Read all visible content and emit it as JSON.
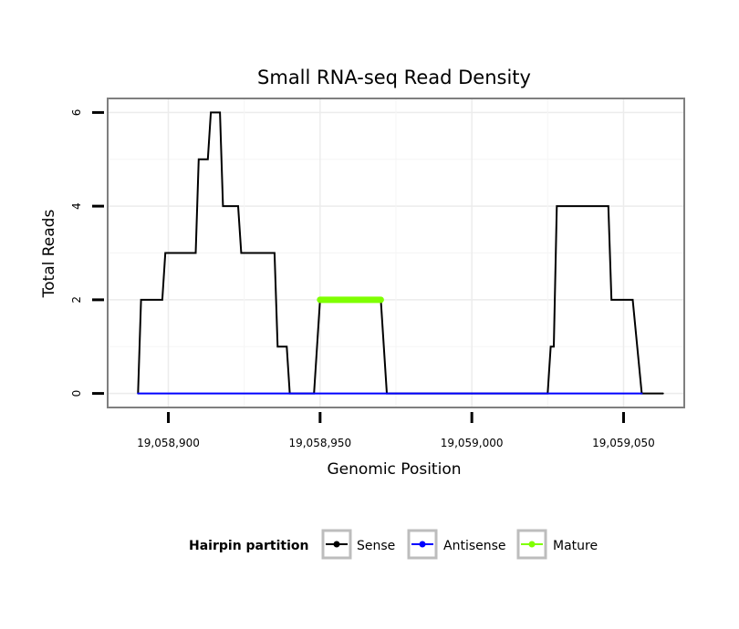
{
  "chart_data": {
    "type": "line",
    "title": "Small RNA-seq Read Density",
    "xlabel": "Genomic Position",
    "ylabel": "Total Reads",
    "xlim": [
      19058880,
      19059070
    ],
    "ylim": [
      -0.3,
      6.3
    ],
    "x_ticks": [
      19058900,
      19058950,
      19059000,
      19059050
    ],
    "x_tick_labels": [
      "19,058,900",
      "19,058,950",
      "19,059,000",
      "19,059,050"
    ],
    "y_ticks": [
      0,
      2,
      4,
      6
    ],
    "y_tick_labels": [
      "0",
      "2",
      "4",
      "6"
    ],
    "grid": true,
    "legend": {
      "title": "Hairpin partition",
      "position": "bottom",
      "entries": [
        "Sense",
        "Antisense",
        "Mature"
      ]
    },
    "series": [
      {
        "name": "Sense",
        "color": "#000000",
        "points": [
          [
            19058890,
            0
          ],
          [
            19058891,
            2
          ],
          [
            19058898,
            2
          ],
          [
            19058899,
            3
          ],
          [
            19058909,
            3
          ],
          [
            19058910,
            5
          ],
          [
            19058913,
            5
          ],
          [
            19058914,
            6
          ],
          [
            19058917,
            6
          ],
          [
            19058918,
            4
          ],
          [
            19058923,
            4
          ],
          [
            19058924,
            3
          ],
          [
            19058935,
            3
          ],
          [
            19058936,
            1
          ],
          [
            19058939,
            1
          ],
          [
            19058940,
            0
          ],
          [
            19058948,
            0
          ],
          [
            19058950,
            2
          ],
          [
            19058970,
            2
          ],
          [
            19058972,
            0
          ],
          [
            19059025,
            0
          ],
          [
            19059026,
            1
          ],
          [
            19059027,
            1
          ],
          [
            19059028,
            4
          ],
          [
            19059045,
            4
          ],
          [
            19059046,
            2
          ],
          [
            19059053,
            2
          ],
          [
            19059056,
            0
          ],
          [
            19059063,
            0
          ]
        ]
      },
      {
        "name": "Antisense",
        "color": "#0000ff",
        "points": [
          [
            19058890,
            0
          ],
          [
            19059056,
            0
          ]
        ]
      },
      {
        "name": "Mature",
        "color": "#7fff00",
        "points": [
          [
            19058950,
            2
          ],
          [
            19058970,
            2
          ]
        ]
      }
    ]
  }
}
